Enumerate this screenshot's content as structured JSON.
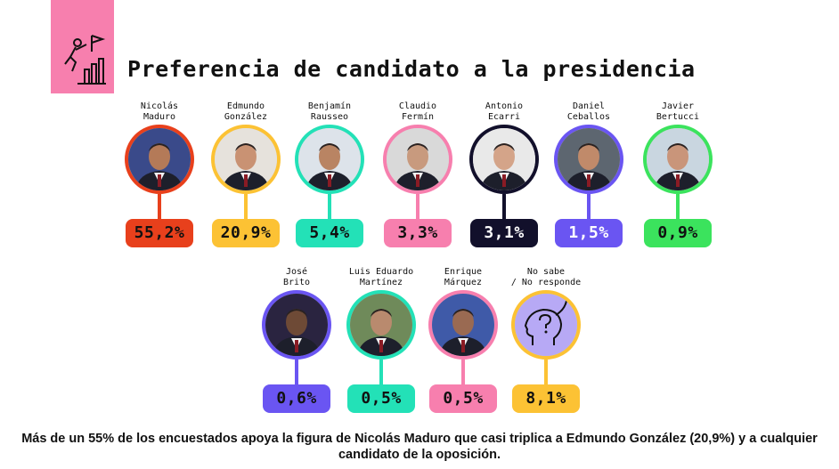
{
  "title": "Preferencia de candidato a la presidencia",
  "icon": "person-climbing-bars-flag-icon",
  "chart_data": {
    "type": "bar",
    "categories": [
      "Nicolás Maduro",
      "Edmundo González",
      "Benjamín Rausseo",
      "Claudio Fermín",
      "Antonio Ecarri",
      "Daniel Ceballos",
      "Javier Bertucci",
      "José Brito",
      "Luis Eduardo Martínez",
      "Enrique Márquez",
      "No sabe / No responde"
    ],
    "values": [
      55.2,
      20.9,
      5.4,
      3.3,
      3.1,
      1.5,
      0.9,
      0.6,
      0.5,
      0.5,
      8.1
    ],
    "value_labels": [
      "55,2%",
      "20,9%",
      "5,4%",
      "3,3%",
      "3,1%",
      "1,5%",
      "0,9%",
      "0,6%",
      "0,5%",
      "0,5%",
      "8,1%"
    ]
  },
  "candidates": [
    {
      "name": "Nicolás\nMaduro",
      "value": "55,2%",
      "color": "#e8401c",
      "text_color": "#111111",
      "bg": "#3a4a8a"
    },
    {
      "name": "Edmundo\nGonzález",
      "value": "20,9%",
      "color": "#fcc234",
      "text_color": "#111111",
      "bg": "#e6e2dc"
    },
    {
      "name": "Benjamín\nRausseo",
      "value": "5,4%",
      "color": "#23e1b7",
      "text_color": "#111111",
      "bg": "#dde3ea"
    },
    {
      "name": "Claudio\nFermín",
      "value": "3,3%",
      "color": "#f77fae",
      "text_color": "#111111",
      "bg": "#d9d9d9"
    },
    {
      "name": "Antonio\nEcarri",
      "value": "3,1%",
      "color": "#12102b",
      "text_color": "#ffffff",
      "bg": "#e9e9e9"
    },
    {
      "name": "Daniel\nCeballos",
      "value": "1,5%",
      "color": "#6a55f2",
      "text_color": "#ffffff",
      "bg": "#5d6670"
    },
    {
      "name": "Javier\nBertucci",
      "value": "0,9%",
      "color": "#3be35d",
      "text_color": "#111111",
      "bg": "#c9d6e0"
    },
    {
      "name": "José\nBrito",
      "value": "0,6%",
      "color": "#6a55f2",
      "text_color": "#111111",
      "bg": "#2a2440"
    },
    {
      "name": "Luis Eduardo\nMartínez",
      "value": "0,5%",
      "color": "#23e1b7",
      "text_color": "#111111",
      "bg": "#6f8a5a"
    },
    {
      "name": "Enrique\nMárquez",
      "value": "0,5%",
      "color": "#f77fae",
      "text_color": "#111111",
      "bg": "#3f5aa8"
    },
    {
      "name": "No sabe\n/ No responde",
      "value": "8,1%",
      "color": "#fcc234",
      "text_color": "#111111",
      "bg": "#b7a9f5",
      "icon": "head-question-mark-icon"
    }
  ],
  "footer": "Más de un 55% de los encuestados apoya la figura de Nicolás Maduro que casi triplica a Edmundo González (20,9%) y a cualquier candidato de la oposición."
}
